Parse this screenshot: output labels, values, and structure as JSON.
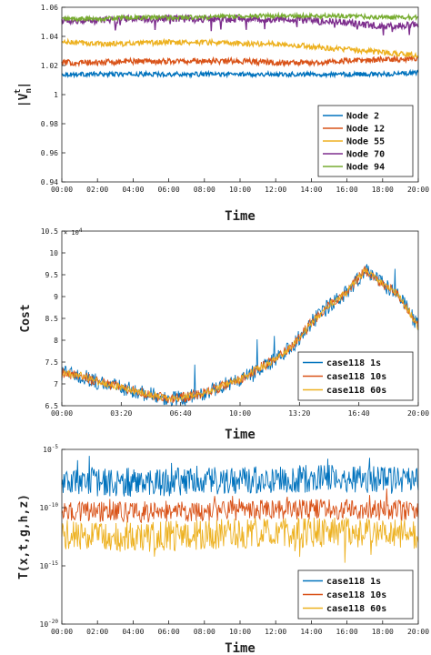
{
  "chart_data": [
    {
      "type": "line",
      "xlabel": "Time",
      "ylabel_main": "|V",
      "ylabel_sub": "n",
      "ylabel_sup": "t",
      "ylabel_end": "|",
      "x_ticks": [
        "00:00",
        "02:00",
        "04:00",
        "06:00",
        "08:00",
        "10:00",
        "12:00",
        "14:00",
        "16:00",
        "18:00",
        "20:00"
      ],
      "x_hours": [
        0,
        2,
        4,
        6,
        8,
        10,
        12,
        14,
        16,
        18,
        20
      ],
      "ylim": [
        0.94,
        1.06
      ],
      "y_ticks": [
        "0.94",
        "0.96",
        "0.98",
        "1",
        "1.02",
        "1.04",
        "1.06"
      ],
      "y_tick_values": [
        0.94,
        0.96,
        0.98,
        1.0,
        1.02,
        1.04,
        1.06
      ],
      "grid": false,
      "legend": "bottom-right",
      "series": [
        {
          "name": "Node 2",
          "color": "#0072BD",
          "x": [
            0,
            2,
            4,
            6,
            8,
            10,
            12,
            14,
            16,
            18,
            20
          ],
          "values": [
            1.014,
            1.014,
            1.014,
            1.014,
            1.014,
            1.014,
            1.014,
            1.014,
            1.014,
            1.014,
            1.015
          ],
          "noise": 0.0015
        },
        {
          "name": "Node 12",
          "color": "#D95319",
          "x": [
            0,
            2,
            4,
            6,
            8,
            10,
            12,
            14,
            16,
            18,
            20
          ],
          "values": [
            1.022,
            1.022,
            1.023,
            1.023,
            1.023,
            1.023,
            1.022,
            1.022,
            1.023,
            1.024,
            1.025
          ],
          "noise": 0.002
        },
        {
          "name": "Node 55",
          "color": "#EDB120",
          "x": [
            0,
            2,
            4,
            6,
            8,
            10,
            12,
            14,
            16,
            18,
            20
          ],
          "values": [
            1.036,
            1.035,
            1.035,
            1.036,
            1.036,
            1.035,
            1.035,
            1.033,
            1.031,
            1.029,
            1.027
          ],
          "noise": 0.0018
        },
        {
          "name": "Node 70",
          "color": "#7E2F8E",
          "x": [
            0,
            2,
            4,
            6,
            8,
            10,
            12,
            14,
            16,
            18,
            20
          ],
          "values": [
            1.051,
            1.051,
            1.052,
            1.052,
            1.052,
            1.052,
            1.052,
            1.051,
            1.049,
            1.047,
            1.048
          ],
          "noise": 0.0025
        },
        {
          "name": "Node 94",
          "color": "#77AC30",
          "x": [
            0,
            2,
            4,
            6,
            8,
            10,
            12,
            14,
            16,
            18,
            20
          ],
          "values": [
            1.052,
            1.052,
            1.053,
            1.053,
            1.053,
            1.054,
            1.054,
            1.054,
            1.054,
            1.053,
            1.053
          ],
          "noise": 0.0015
        }
      ]
    },
    {
      "type": "line",
      "xlabel": "Time",
      "ylabel": "Cost",
      "exponent_label": "× 10",
      "exponent_power": "4",
      "x_ticks": [
        "00:00",
        "03:20",
        "06:40",
        "10:00",
        "13:20",
        "16:40",
        "20:00"
      ],
      "x_hours": [
        0,
        3.333,
        6.667,
        10,
        13.333,
        16.667,
        20
      ],
      "ylim": [
        6.5,
        10.5
      ],
      "y_ticks": [
        "6.5",
        "7",
        "7.5",
        "8",
        "8.5",
        "9",
        "9.5",
        "10",
        "10.5"
      ],
      "y_tick_values": [
        6.5,
        7,
        7.5,
        8,
        8.5,
        9,
        9.5,
        10,
        10.5
      ],
      "grid": false,
      "legend": "bottom-right",
      "series": [
        {
          "name": "case118 1s",
          "color": "#0072BD",
          "x": [
            0,
            1,
            2,
            3,
            4,
            5,
            6,
            7,
            8,
            9,
            10,
            11,
            12,
            13,
            14,
            15,
            16,
            17,
            18,
            19,
            20
          ],
          "values": [
            7.25,
            7.2,
            7.05,
            6.95,
            6.85,
            6.75,
            6.65,
            6.7,
            6.8,
            6.95,
            7.1,
            7.35,
            7.55,
            7.9,
            8.4,
            8.8,
            9.1,
            9.6,
            9.3,
            9.0,
            8.3
          ],
          "noise": 0.18
        },
        {
          "name": "case118 10s",
          "color": "#D95319",
          "x": [
            0,
            1,
            2,
            3,
            4,
            5,
            6,
            7,
            8,
            9,
            10,
            11,
            12,
            13,
            14,
            15,
            16,
            17,
            18,
            19,
            20
          ],
          "values": [
            7.25,
            7.2,
            7.05,
            6.95,
            6.85,
            6.75,
            6.65,
            6.7,
            6.8,
            6.95,
            7.1,
            7.35,
            7.55,
            7.9,
            8.4,
            8.8,
            9.1,
            9.6,
            9.3,
            9.0,
            8.3
          ],
          "noise": 0.12
        },
        {
          "name": "case118 60s",
          "color": "#EDB120",
          "x": [
            0,
            1,
            2,
            3,
            4,
            5,
            6,
            7,
            8,
            9,
            10,
            11,
            12,
            13,
            14,
            15,
            16,
            17,
            18,
            19,
            20
          ],
          "values": [
            7.25,
            7.2,
            7.05,
            6.95,
            6.85,
            6.75,
            6.65,
            6.7,
            6.8,
            6.95,
            7.1,
            7.35,
            7.55,
            7.9,
            8.4,
            8.8,
            9.1,
            9.6,
            9.3,
            9.0,
            8.3
          ],
          "noise": 0.08
        }
      ]
    },
    {
      "type": "line",
      "xlabel": "Time",
      "ylabel": "T(x,t,g,h,z)",
      "scale": "log",
      "tick_base": "10",
      "x_ticks": [
        "00:00",
        "02:00",
        "04:00",
        "06:00",
        "08:00",
        "10:00",
        "12:00",
        "14:00",
        "16:00",
        "18:00",
        "20:00"
      ],
      "x_hours": [
        0,
        2,
        4,
        6,
        8,
        10,
        12,
        14,
        16,
        18,
        20
      ],
      "ylim": [
        1e-20,
        1e-05
      ],
      "y_tick_exponents": [
        "-5",
        "-10",
        "-15",
        "-20"
      ],
      "y_tick_values": [
        -5,
        -10,
        -15,
        -20
      ],
      "grid": false,
      "legend": "bottom-right",
      "series": [
        {
          "name": "case118 1s",
          "color": "#0072BD",
          "x": [
            0,
            5,
            10,
            15,
            20
          ],
          "log10_values": [
            -7.8,
            -7.9,
            -7.6,
            -7.5,
            -7.7
          ],
          "noise": 1.2
        },
        {
          "name": "case118 10s",
          "color": "#D95319",
          "x": [
            0,
            5,
            10,
            15,
            20
          ],
          "log10_values": [
            -10.3,
            -10.4,
            -10.2,
            -10.1,
            -10.3
          ],
          "noise": 0.9
        },
        {
          "name": "case118 60s",
          "color": "#EDB120",
          "x": [
            0,
            5,
            10,
            15,
            20
          ],
          "log10_values": [
            -12.3,
            -12.5,
            -12.2,
            -12.1,
            -12.3
          ],
          "noise": 1.3
        }
      ]
    }
  ]
}
